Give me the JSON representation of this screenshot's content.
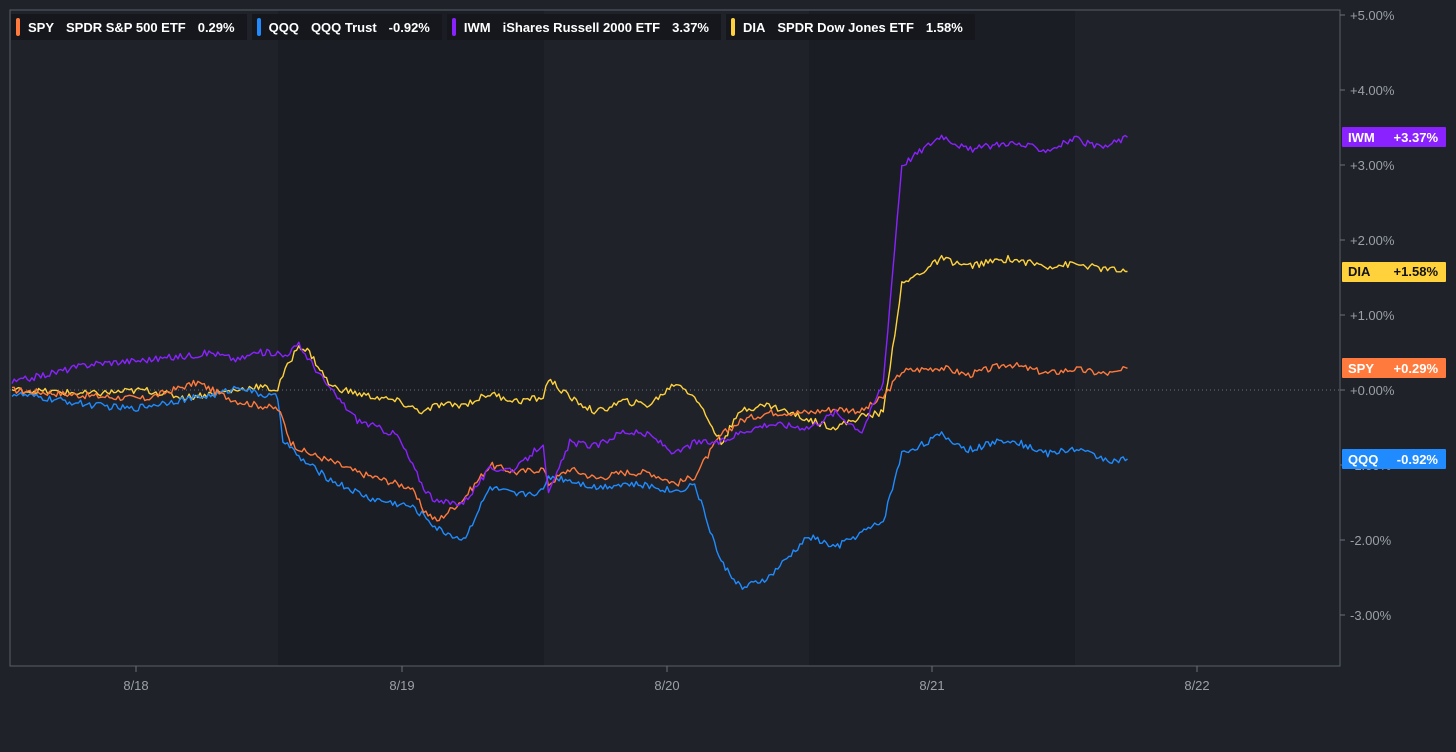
{
  "chart_data": {
    "type": "line",
    "title": "",
    "xlabel": "",
    "ylabel": "",
    "ylim": [
      -3.3,
      5.0
    ],
    "x_ticks": [
      "8/18",
      "8/19",
      "8/20",
      "8/21",
      "8/22"
    ],
    "y_ticks": [
      "+5.00%",
      "+4.00%",
      "+3.00%",
      "+2.00%",
      "+1.00%",
      "+0.00%",
      "-1.00%",
      "-2.00%",
      "-3.00%"
    ],
    "y_tick_values": [
      5,
      4,
      3,
      2,
      1,
      0,
      -1,
      -2,
      -3
    ],
    "grid": false,
    "legend_position": "top-left",
    "series": [
      {
        "symbol": "SPY",
        "name": "SPDR S&P 500 ETF",
        "change": "0.29%",
        "badge": "+0.29%",
        "color": "#ff7a3c",
        "badge_text_color": "#ffffff",
        "points": [
          [
            0,
            0
          ],
          [
            0.3,
            -0.08
          ],
          [
            0.5,
            -0.12
          ],
          [
            0.65,
            0.05
          ],
          [
            0.7,
            0.1
          ],
          [
            0.78,
            -0.05
          ],
          [
            0.85,
            -0.15
          ],
          [
            0.92,
            -0.2
          ],
          [
            1.0,
            -0.25
          ],
          [
            1.02,
            -0.4
          ],
          [
            1.05,
            -0.7
          ],
          [
            1.1,
            -0.82
          ],
          [
            1.2,
            -0.95
          ],
          [
            1.3,
            -1.1
          ],
          [
            1.4,
            -1.2
          ],
          [
            1.5,
            -1.3
          ],
          [
            1.55,
            -1.6
          ],
          [
            1.6,
            -1.75
          ],
          [
            1.7,
            -1.45
          ],
          [
            1.8,
            -1.0
          ],
          [
            1.9,
            -1.1
          ],
          [
            2.0,
            -1.05
          ],
          [
            2.02,
            -1.25
          ],
          [
            2.1,
            -1.05
          ],
          [
            2.2,
            -1.18
          ],
          [
            2.3,
            -1.1
          ],
          [
            2.4,
            -1.1
          ],
          [
            2.5,
            -1.25
          ],
          [
            2.57,
            -1.15
          ],
          [
            2.67,
            -0.6
          ],
          [
            2.75,
            -0.4
          ],
          [
            2.85,
            -0.3
          ],
          [
            3.0,
            -0.3
          ],
          [
            3.1,
            -0.25
          ],
          [
            3.2,
            -0.28
          ],
          [
            3.28,
            -0.1
          ],
          [
            3.35,
            0.25
          ],
          [
            3.5,
            0.3
          ],
          [
            3.6,
            0.2
          ],
          [
            3.75,
            0.35
          ],
          [
            3.9,
            0.22
          ],
          [
            4.0,
            0.28
          ],
          [
            4.1,
            0.22
          ],
          [
            4.15,
            0.22
          ],
          [
            4.2,
            0.29
          ]
        ]
      },
      {
        "symbol": "QQQ",
        "name": "QQQ Trust",
        "change": "-0.92%",
        "badge": "-0.92%",
        "color": "#1f8bff",
        "badge_text_color": "#ffffff",
        "points": [
          [
            0,
            -0.05
          ],
          [
            0.3,
            -0.2
          ],
          [
            0.45,
            -0.25
          ],
          [
            0.6,
            -0.15
          ],
          [
            0.7,
            -0.1
          ],
          [
            0.78,
            -0.05
          ],
          [
            0.86,
            0.05
          ],
          [
            0.92,
            -0.05
          ],
          [
            1.0,
            -0.1
          ],
          [
            1.02,
            -0.65
          ],
          [
            1.08,
            -0.9
          ],
          [
            1.2,
            -1.2
          ],
          [
            1.35,
            -1.45
          ],
          [
            1.5,
            -1.55
          ],
          [
            1.56,
            -1.7
          ],
          [
            1.6,
            -1.85
          ],
          [
            1.7,
            -2.0
          ],
          [
            1.8,
            -1.3
          ],
          [
            1.9,
            -1.4
          ],
          [
            2.0,
            -1.35
          ],
          [
            2.02,
            -1.15
          ],
          [
            2.1,
            -1.2
          ],
          [
            2.2,
            -1.3
          ],
          [
            2.3,
            -1.25
          ],
          [
            2.4,
            -1.28
          ],
          [
            2.5,
            -1.35
          ],
          [
            2.57,
            -1.25
          ],
          [
            2.67,
            -2.3
          ],
          [
            2.75,
            -2.65
          ],
          [
            2.85,
            -2.5
          ],
          [
            3.0,
            -1.95
          ],
          [
            3.1,
            -2.1
          ],
          [
            3.2,
            -1.9
          ],
          [
            3.28,
            -1.75
          ],
          [
            3.35,
            -0.85
          ],
          [
            3.5,
            -0.6
          ],
          [
            3.6,
            -0.8
          ],
          [
            3.75,
            -0.65
          ],
          [
            3.9,
            -0.85
          ],
          [
            4.0,
            -0.78
          ],
          [
            4.1,
            -0.9
          ],
          [
            4.15,
            -0.95
          ],
          [
            4.2,
            -0.92
          ]
        ]
      },
      {
        "symbol": "IWM",
        "name": "iShares Russell 2000 ETF",
        "change": "3.37%",
        "badge": "+3.37%",
        "color": "#8a22ff",
        "badge_text_color": "#ffffff",
        "points": [
          [
            0,
            0.1
          ],
          [
            0.3,
            0.35
          ],
          [
            0.5,
            0.4
          ],
          [
            0.65,
            0.45
          ],
          [
            0.75,
            0.5
          ],
          [
            0.85,
            0.4
          ],
          [
            0.92,
            0.5
          ],
          [
            1.0,
            0.5
          ],
          [
            1.02,
            0.45
          ],
          [
            1.08,
            0.6
          ],
          [
            1.12,
            0.4
          ],
          [
            1.2,
            0.0
          ],
          [
            1.3,
            -0.4
          ],
          [
            1.45,
            -0.6
          ],
          [
            1.55,
            -1.3
          ],
          [
            1.6,
            -1.5
          ],
          [
            1.7,
            -1.5
          ],
          [
            1.8,
            -1.05
          ],
          [
            1.9,
            -1.05
          ],
          [
            2.0,
            -0.7
          ],
          [
            2.02,
            -1.4
          ],
          [
            2.1,
            -0.7
          ],
          [
            2.2,
            -0.75
          ],
          [
            2.3,
            -0.55
          ],
          [
            2.4,
            -0.6
          ],
          [
            2.5,
            -0.85
          ],
          [
            2.57,
            -0.7
          ],
          [
            2.67,
            -0.7
          ],
          [
            2.75,
            -0.55
          ],
          [
            2.85,
            -0.45
          ],
          [
            3.0,
            -0.5
          ],
          [
            3.1,
            -0.3
          ],
          [
            3.2,
            -0.55
          ],
          [
            3.28,
            0.1
          ],
          [
            3.35,
            3.0
          ],
          [
            3.5,
            3.4
          ],
          [
            3.6,
            3.2
          ],
          [
            3.75,
            3.3
          ],
          [
            3.9,
            3.2
          ],
          [
            4.0,
            3.35
          ],
          [
            4.1,
            3.22
          ],
          [
            4.15,
            3.3
          ],
          [
            4.2,
            3.37
          ]
        ]
      },
      {
        "symbol": "DIA",
        "name": "SPDR Dow Jones ETF",
        "change": "1.58%",
        "badge": "+1.58%",
        "color": "#ffd23c",
        "badge_text_color": "#111111",
        "points": [
          [
            0,
            0.0
          ],
          [
            0.3,
            -0.05
          ],
          [
            0.5,
            0.0
          ],
          [
            0.65,
            -0.1
          ],
          [
            0.75,
            -0.05
          ],
          [
            0.85,
            0.0
          ],
          [
            0.92,
            0.05
          ],
          [
            1.0,
            0.0
          ],
          [
            1.02,
            0.2
          ],
          [
            1.08,
            0.6
          ],
          [
            1.12,
            0.5
          ],
          [
            1.2,
            0.05
          ],
          [
            1.3,
            -0.05
          ],
          [
            1.45,
            -0.15
          ],
          [
            1.55,
            -0.3
          ],
          [
            1.6,
            -0.2
          ],
          [
            1.7,
            -0.2
          ],
          [
            1.8,
            -0.05
          ],
          [
            1.9,
            -0.15
          ],
          [
            2.0,
            -0.1
          ],
          [
            2.02,
            0.15
          ],
          [
            2.1,
            -0.1
          ],
          [
            2.2,
            -0.3
          ],
          [
            2.3,
            -0.15
          ],
          [
            2.4,
            -0.2
          ],
          [
            2.5,
            0.1
          ],
          [
            2.57,
            -0.08
          ],
          [
            2.67,
            -0.7
          ],
          [
            2.75,
            -0.25
          ],
          [
            2.85,
            -0.2
          ],
          [
            3.0,
            -0.4
          ],
          [
            3.1,
            -0.5
          ],
          [
            3.2,
            -0.35
          ],
          [
            3.28,
            -0.3
          ],
          [
            3.35,
            1.4
          ],
          [
            3.5,
            1.75
          ],
          [
            3.6,
            1.65
          ],
          [
            3.75,
            1.75
          ],
          [
            3.9,
            1.65
          ],
          [
            4.0,
            1.68
          ],
          [
            4.1,
            1.62
          ],
          [
            4.15,
            1.6
          ],
          [
            4.2,
            1.58
          ]
        ]
      }
    ]
  }
}
